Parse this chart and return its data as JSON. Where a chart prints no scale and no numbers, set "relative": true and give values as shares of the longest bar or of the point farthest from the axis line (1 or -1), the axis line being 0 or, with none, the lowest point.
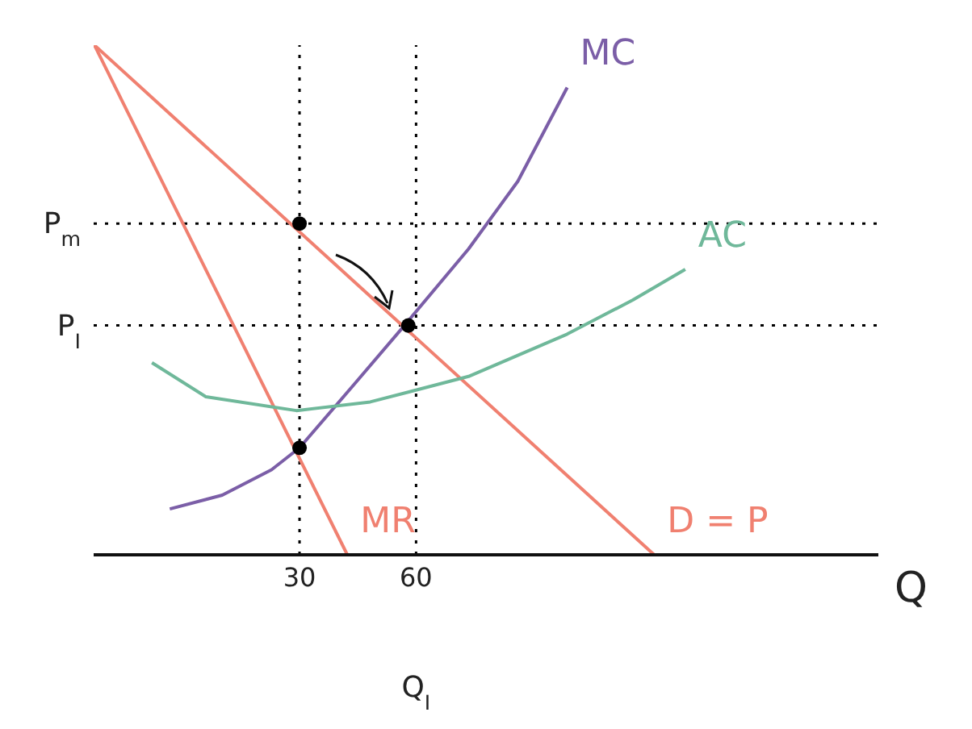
{
  "chart_data": {
    "type": "line",
    "relative": true,
    "xlabel": "Q",
    "xlim": [
      -23,
      179
    ],
    "xticks": [
      30,
      60
    ],
    "marker": "none",
    "line_style": "solid",
    "series": [
      {
        "name": "D = P",
        "color": "#f08070",
        "x": [
          -22.8,
          121.3
        ],
        "values": [
          1,
          0
        ]
      },
      {
        "name": "MR",
        "color": "#f08070",
        "x": [
          -22.8,
          42.3
        ],
        "values": [
          1,
          0
        ]
      },
      {
        "name": "MC",
        "color": "#7b5ea7",
        "x": [
          -3.4,
          10.1,
          22.8,
          30,
          43.9,
          57,
          73.5,
          86.2,
          98.9
        ],
        "values": [
          0.09,
          0.117,
          0.167,
          0.21,
          0.333,
          0.45,
          0.6,
          0.733,
          0.917
        ]
      },
      {
        "name": "AC",
        "color": "#6fb89a",
        "x": [
          -8,
          5.9,
          29.2,
          48.2,
          73.5,
          98.9,
          115.8,
          129.3
        ],
        "values": [
          0.377,
          0.31,
          0.283,
          0.3,
          0.35,
          0.433,
          0.5,
          0.56
        ]
      },
      {
        "type": "scatter",
        "color": "#000000",
        "marker": "circle",
        "x": [
          30,
          58,
          30
        ],
        "values": [
          0.65,
          0.45,
          0.21
        ]
      }
    ],
    "ref_lines": [
      {
        "axis": "y",
        "value": 0.65,
        "label": "P$_{m}$",
        "line_style": "dotted",
        "color": "#000000"
      },
      {
        "axis": "y",
        "value": 0.45,
        "label": "P$_{I}$",
        "line_style": "dotted",
        "color": "#000000"
      },
      {
        "axis": "x",
        "value": 30,
        "line_style": "dotted",
        "color": "#000000"
      },
      {
        "axis": "x",
        "value": 60,
        "line_style": "dotted",
        "color": "#000000"
      }
    ],
    "annotations": [
      "Q$_{I}$"
    ]
  }
}
